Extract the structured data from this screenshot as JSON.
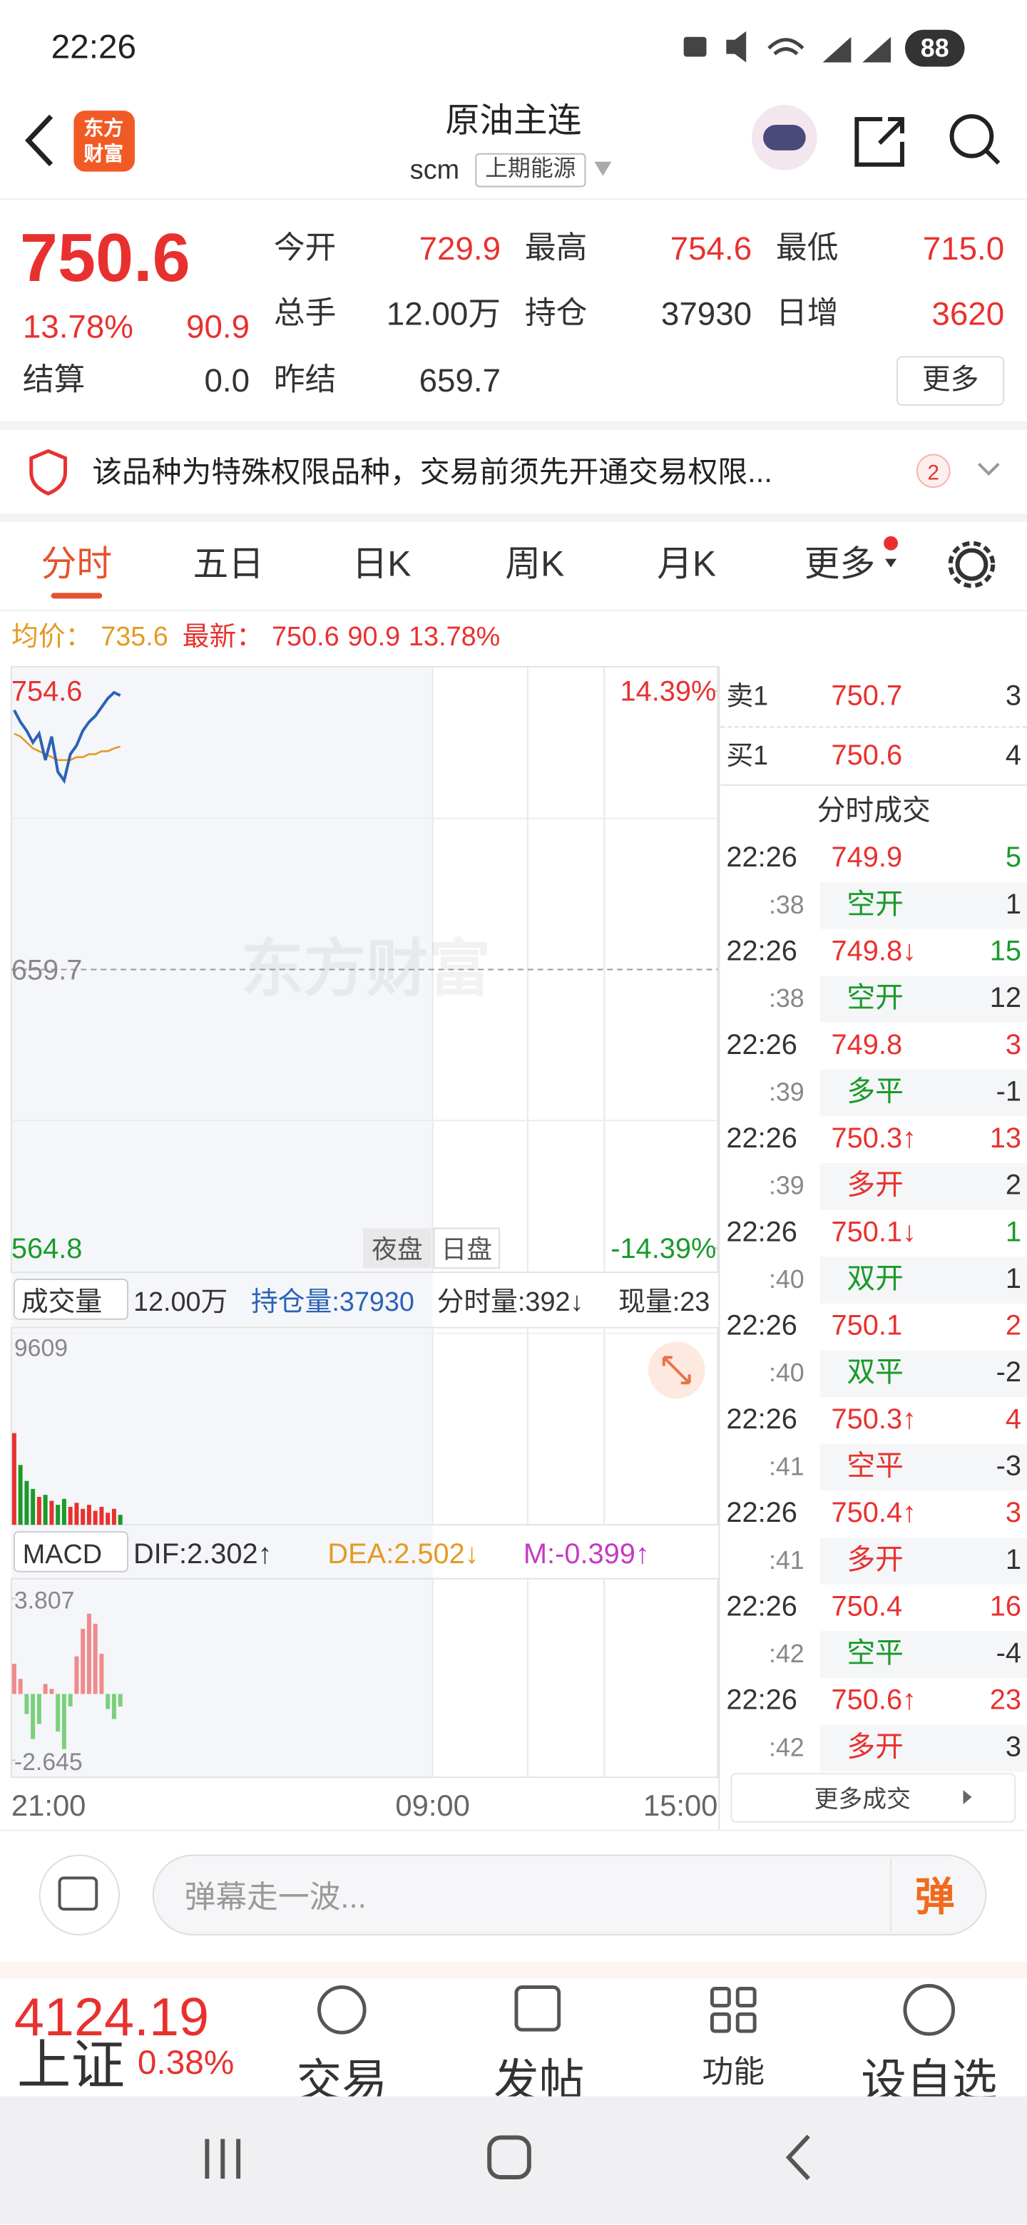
{
  "status": {
    "time": "22:26",
    "battery": "88"
  },
  "header": {
    "logo": [
      "东方",
      "财富"
    ],
    "title": "原油主连",
    "code": "scm",
    "exchange": "上期能源"
  },
  "quote": {
    "price": "750.6",
    "change_pct": "13.78%",
    "change": "90.9",
    "fields": [
      [
        "今开",
        "729.9"
      ],
      [
        "最高",
        "754.6"
      ],
      [
        "最低",
        "715.0"
      ],
      [
        "总手",
        "12.00万"
      ],
      [
        "持仓",
        "37930"
      ],
      [
        "日增",
        "3620"
      ],
      [
        "结算",
        "0.0"
      ],
      [
        "昨结",
        "659.7"
      ]
    ],
    "more": "更多"
  },
  "notice": {
    "text": "该品种为特殊权限品种，交易前须先开通交易权限...",
    "badge": "2"
  },
  "tabs": [
    "分时",
    "五日",
    "日K",
    "周K",
    "月K",
    "更多"
  ],
  "info": {
    "avg_label": "均价：",
    "avg": "735.6",
    "last_label": "最新：",
    "last": "750.6",
    "change": "90.9",
    "change_pct": "13.78%"
  },
  "chart_data": [
    {
      "type": "line",
      "watermark": "东方财富",
      "sessions": [
        "夜盘",
        "日盘"
      ],
      "ylim": [
        564.8,
        754.6
      ],
      "yticks": [
        754.6,
        659.7,
        564.8
      ],
      "y2lim": [
        -14.39,
        14.39
      ],
      "y2ticks": [
        {
          "value": 14.39,
          "label": "14.39%"
        },
        {
          "value": -14.39,
          "label": "-14.39%"
        }
      ],
      "xticks": [
        "21:00",
        "09:00",
        "15:00"
      ],
      "series": [
        {
          "color": "#2b63b5",
          "values": [
            748,
            744,
            741,
            737,
            740,
            731,
            739,
            727,
            724,
            733,
            736,
            741,
            744,
            746,
            749,
            752,
            754,
            753
          ]
        },
        {
          "color": "#e59a23",
          "values": [
            740,
            739,
            737,
            735,
            734,
            733,
            732,
            731,
            731,
            731,
            732,
            732,
            733,
            733,
            734,
            734,
            735,
            735.6
          ]
        }
      ]
    },
    {
      "type": "bar",
      "title": "成交量",
      "annotations": [
        "12.00万",
        "持仓量:37930",
        "分时量:392↓",
        "现量:23"
      ],
      "ylim": [
        0,
        9609
      ],
      "yticks": [
        9609
      ],
      "values": [
        4600,
        3000,
        2200,
        1800,
        1400,
        1500,
        1200,
        1000,
        1300,
        900,
        1100,
        800,
        1000,
        700,
        900,
        600,
        800,
        500
      ]
    },
    {
      "type": "bar",
      "title": "MACD",
      "annotations": [
        "DIF:2.302↑",
        "DEA:2.502↓",
        "M:-0.399↑"
      ],
      "ylim": [
        -2.645,
        3.807
      ],
      "yticks": [
        3.807,
        -2.645
      ],
      "values": [
        1.2,
        0.6,
        -0.8,
        -1.8,
        -1.2,
        0.4,
        0.2,
        -1.5,
        -2.2,
        -0.5,
        1.5,
        2.6,
        3.2,
        2.8,
        1.6,
        -0.6,
        -1.0,
        -0.5
      ]
    }
  ],
  "book": [
    [
      "卖1",
      "750.7",
      "3"
    ],
    [
      "买1",
      "750.6",
      "4"
    ]
  ],
  "trades_title": "分时成交",
  "trades": [
    {
      "time": "22:26",
      "price": "749.9",
      "volume": "5",
      "vol_color": "#1a9a2a",
      "sec": ":38",
      "kind": "空开",
      "kind_color": "#1a9a2a",
      "delta": "1"
    },
    {
      "time": "22:26",
      "price": "749.8↓",
      "volume": "15",
      "vol_color": "#1a9a2a",
      "sec": ":38",
      "kind": "空开",
      "kind_color": "#1a9a2a",
      "delta": "12"
    },
    {
      "time": "22:26",
      "price": "749.8",
      "volume": "3",
      "vol_color": "#e8312f",
      "sec": ":39",
      "kind": "多平",
      "kind_color": "#1a9a2a",
      "delta": "-1"
    },
    {
      "time": "22:26",
      "price": "750.3↑",
      "volume": "13",
      "vol_color": "#e8312f",
      "sec": ":39",
      "kind": "多开",
      "kind_color": "#e8312f",
      "delta": "2"
    },
    {
      "time": "22:26",
      "price": "750.1↓",
      "volume": "1",
      "vol_color": "#1a9a2a",
      "sec": ":40",
      "kind": "双开",
      "kind_color": "#1a9a2a",
      "delta": "1"
    },
    {
      "time": "22:26",
      "price": "750.1",
      "volume": "2",
      "vol_color": "#e8312f",
      "sec": ":40",
      "kind": "双平",
      "kind_color": "#1a9a2a",
      "delta": "-2"
    },
    {
      "time": "22:26",
      "price": "750.3↑",
      "volume": "4",
      "vol_color": "#e8312f",
      "sec": ":41",
      "kind": "空平",
      "kind_color": "#e8312f",
      "delta": "-3"
    },
    {
      "time": "22:26",
      "price": "750.4↑",
      "volume": "3",
      "vol_color": "#e8312f",
      "sec": ":41",
      "kind": "多开",
      "kind_color": "#e8312f",
      "delta": "1"
    },
    {
      "time": "22:26",
      "price": "750.4",
      "volume": "16",
      "vol_color": "#e8312f",
      "sec": ":42",
      "kind": "空平",
      "kind_color": "#1a9a2a",
      "delta": "-4"
    },
    {
      "time": "22:26",
      "price": "750.6↑",
      "volume": "23",
      "vol_color": "#e8312f",
      "sec": ":42",
      "kind": "多开",
      "kind_color": "#e8312f",
      "delta": "3"
    }
  ],
  "more_trades": "更多成交",
  "comment": {
    "placeholder": "弹幕走一波...",
    "button": "弹"
  },
  "bottom": {
    "index_value": "4124.19",
    "index_name": "上证",
    "index_pct": "0.38%",
    "nav": [
      "交易",
      "发帖",
      "功能",
      "设自选"
    ]
  }
}
